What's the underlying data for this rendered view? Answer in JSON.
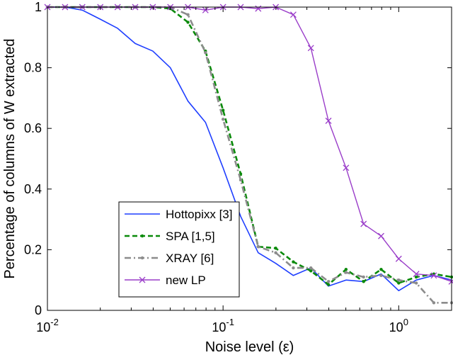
{
  "chart_data": {
    "type": "line",
    "xlabel": "Noise level (ε)",
    "ylabel": "Percentage of columns of W extracted",
    "xscale": "log",
    "xlim": [
      0.01,
      2
    ],
    "ylim": [
      0,
      1
    ],
    "x_ticks": [
      {
        "value": 0.01,
        "base": "10",
        "exp": "-2"
      },
      {
        "value": 0.1,
        "base": "10",
        "exp": "-1"
      },
      {
        "value": 1,
        "base": "10",
        "exp": "0"
      }
    ],
    "y_ticks": [
      {
        "value": 0,
        "label": "0"
      },
      {
        "value": 0.2,
        "label": "0.2"
      },
      {
        "value": 0.4,
        "label": "0.4"
      },
      {
        "value": 0.6,
        "label": "0.6"
      },
      {
        "value": 0.8,
        "label": "0.8"
      },
      {
        "value": 1,
        "label": "1"
      }
    ],
    "grid": false,
    "legend": "bottom-left",
    "series": [
      {
        "name": "Hottopixx [3]",
        "color": "#1f3fff",
        "style": "solid",
        "marker": "none",
        "points": [
          [
            0.01,
            1
          ],
          [
            0.0126,
            1
          ],
          [
            0.0158,
            0.99
          ],
          [
            0.02,
            0.96
          ],
          [
            0.0251,
            0.93
          ],
          [
            0.0316,
            0.88
          ],
          [
            0.0398,
            0.855
          ],
          [
            0.0501,
            0.8
          ],
          [
            0.0631,
            0.69
          ],
          [
            0.0794,
            0.62
          ],
          [
            0.1,
            0.47
          ],
          [
            0.1259,
            0.31
          ],
          [
            0.1585,
            0.19
          ],
          [
            0.1995,
            0.155
          ],
          [
            0.2512,
            0.115
          ],
          [
            0.3162,
            0.14
          ],
          [
            0.3981,
            0.08
          ],
          [
            0.5012,
            0.1
          ],
          [
            0.631,
            0.095
          ],
          [
            0.7943,
            0.12
          ],
          [
            1.0,
            0.065
          ],
          [
            1.2589,
            0.1
          ],
          [
            1.5849,
            0.115
          ],
          [
            2.0,
            0.1
          ]
        ]
      },
      {
        "name": "SPA [1,5]",
        "color": "#0a8a0a",
        "style": "dashed",
        "marker": "dot",
        "points": [
          [
            0.01,
            1
          ],
          [
            0.0126,
            1
          ],
          [
            0.0158,
            1
          ],
          [
            0.02,
            1
          ],
          [
            0.0251,
            1
          ],
          [
            0.0316,
            1
          ],
          [
            0.0398,
            1
          ],
          [
            0.0501,
            0.995
          ],
          [
            0.0631,
            0.95
          ],
          [
            0.0794,
            0.855
          ],
          [
            0.1,
            0.66
          ],
          [
            0.1259,
            0.45
          ],
          [
            0.1585,
            0.21
          ],
          [
            0.1995,
            0.205
          ],
          [
            0.2512,
            0.16
          ],
          [
            0.3162,
            0.13
          ],
          [
            0.3981,
            0.085
          ],
          [
            0.5012,
            0.135
          ],
          [
            0.631,
            0.095
          ],
          [
            0.7943,
            0.135
          ],
          [
            1.0,
            0.09
          ],
          [
            1.2589,
            0.11
          ],
          [
            1.5849,
            0.12
          ],
          [
            2.0,
            0.11
          ]
        ]
      },
      {
        "name": "XRAY [6]",
        "color": "#8c8c8c",
        "style": "dashdot",
        "marker": "dot",
        "points": [
          [
            0.01,
            1
          ],
          [
            0.0126,
            1
          ],
          [
            0.0158,
            1
          ],
          [
            0.02,
            1
          ],
          [
            0.0251,
            1
          ],
          [
            0.0316,
            1
          ],
          [
            0.0398,
            1
          ],
          [
            0.0501,
            1
          ],
          [
            0.0631,
            0.975
          ],
          [
            0.0794,
            0.85
          ],
          [
            0.1,
            0.63
          ],
          [
            0.1259,
            0.43
          ],
          [
            0.1585,
            0.21
          ],
          [
            0.1995,
            0.19
          ],
          [
            0.2512,
            0.14
          ],
          [
            0.3162,
            0.14
          ],
          [
            0.3981,
            0.095
          ],
          [
            0.5012,
            0.125
          ],
          [
            0.631,
            0.11
          ],
          [
            0.7943,
            0.115
          ],
          [
            1.0,
            0.1
          ],
          [
            1.2589,
            0.09
          ],
          [
            1.5849,
            0.025
          ],
          [
            2.0,
            0.025
          ]
        ]
      },
      {
        "name": "new LP",
        "color": "#9a3dc9",
        "style": "solid",
        "marker": "x",
        "points": [
          [
            0.01,
            1
          ],
          [
            0.0126,
            1
          ],
          [
            0.0158,
            1
          ],
          [
            0.02,
            1
          ],
          [
            0.0251,
            1
          ],
          [
            0.0316,
            1
          ],
          [
            0.0398,
            1
          ],
          [
            0.0501,
            1
          ],
          [
            0.0631,
            1
          ],
          [
            0.0794,
            0.99
          ],
          [
            0.1,
            1
          ],
          [
            0.1259,
            1
          ],
          [
            0.1585,
            0.995
          ],
          [
            0.1995,
            1
          ],
          [
            0.2512,
            0.975
          ],
          [
            0.3162,
            0.865
          ],
          [
            0.3981,
            0.625
          ],
          [
            0.5012,
            0.47
          ],
          [
            0.631,
            0.285
          ],
          [
            0.7943,
            0.245
          ],
          [
            1.0,
            0.17
          ],
          [
            1.2589,
            0.12
          ],
          [
            1.5849,
            0.115
          ],
          [
            2.0,
            0.095
          ]
        ]
      }
    ]
  }
}
